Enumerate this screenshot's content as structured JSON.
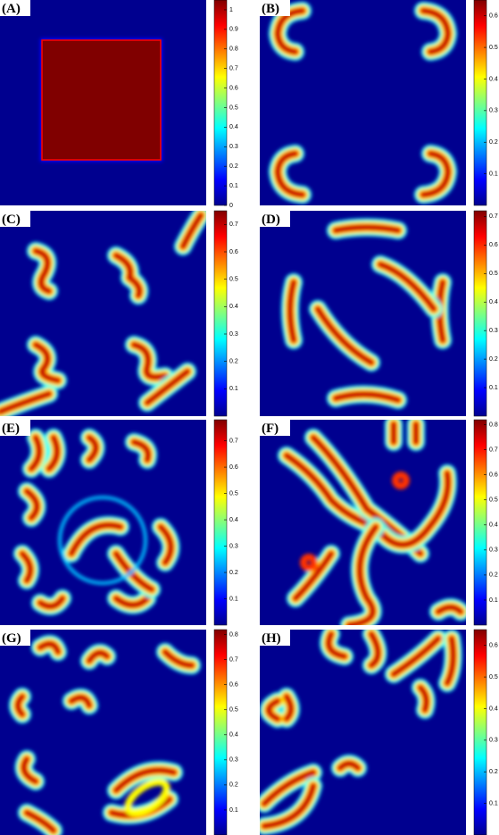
{
  "panels": [
    {
      "label": "(A)",
      "colorbar": {
        "range": [
          0,
          1.05
        ],
        "ticks": [
          0,
          0.1,
          0.2,
          0.3,
          0.4,
          0.5,
          0.6,
          0.7,
          0.8,
          0.9,
          1
        ]
      }
    },
    {
      "label": "(B)",
      "colorbar": {
        "range": [
          0,
          0.65
        ],
        "ticks": [
          0.1,
          0.2,
          0.3,
          0.4,
          0.5,
          0.6
        ]
      }
    },
    {
      "label": "(C)",
      "colorbar": {
        "range": [
          0,
          0.75
        ],
        "ticks": [
          0.1,
          0.2,
          0.3,
          0.4,
          0.5,
          0.6,
          0.7
        ]
      }
    },
    {
      "label": "(D)",
      "colorbar": {
        "range": [
          0,
          0.72
        ],
        "ticks": [
          0.1,
          0.2,
          0.3,
          0.4,
          0.5,
          0.6,
          0.7
        ]
      }
    },
    {
      "label": "(E)",
      "colorbar": {
        "range": [
          0,
          0.78
        ],
        "ticks": [
          0.1,
          0.2,
          0.3,
          0.4,
          0.5,
          0.6,
          0.7
        ]
      }
    },
    {
      "label": "(F)",
      "colorbar": {
        "range": [
          0,
          0.82
        ],
        "ticks": [
          0.1,
          0.2,
          0.3,
          0.4,
          0.5,
          0.6,
          0.7,
          0.8
        ]
      }
    },
    {
      "label": "(G)",
      "colorbar": {
        "range": [
          0,
          0.82
        ],
        "ticks": [
          0.1,
          0.2,
          0.3,
          0.4,
          0.5,
          0.6,
          0.7,
          0.8
        ]
      }
    },
    {
      "label": "(H)",
      "colorbar": {
        "range": [
          0,
          0.65
        ],
        "ticks": [
          0.1,
          0.2,
          0.3,
          0.4,
          0.5,
          0.6
        ]
      }
    }
  ]
}
